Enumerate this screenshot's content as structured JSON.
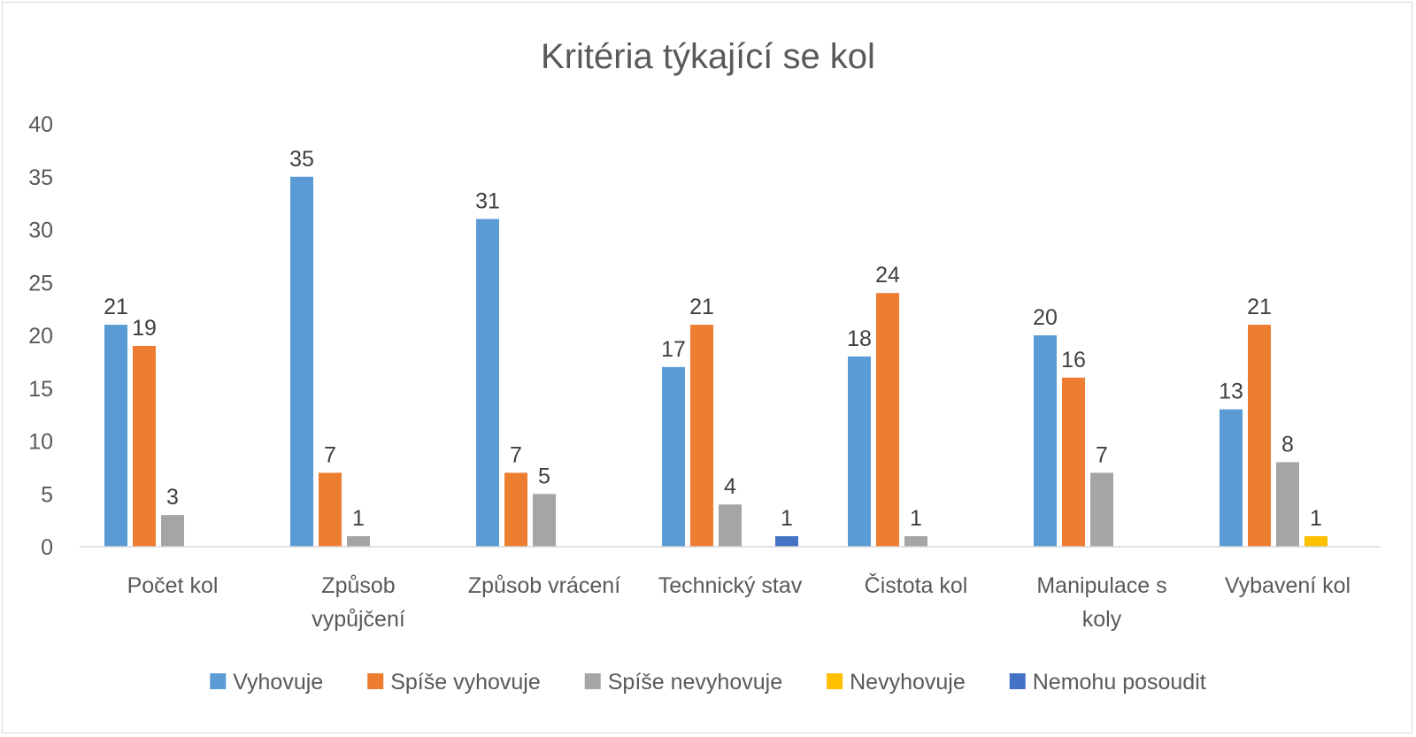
{
  "chart_data": {
    "type": "bar",
    "title": "Kritéria týkající se kol",
    "xlabel": "",
    "ylabel": "",
    "ylim": [
      0,
      40
    ],
    "yticks": [
      0,
      5,
      10,
      15,
      20,
      25,
      30,
      35,
      40
    ],
    "grid": false,
    "legend_position": "bottom",
    "categories": [
      [
        "Počet kol"
      ],
      [
        "Způsob",
        "vypůjčení"
      ],
      [
        "Způsob vrácení"
      ],
      [
        "Technický stav"
      ],
      [
        "Čistota kol"
      ],
      [
        "Manipulace s",
        "koly"
      ],
      [
        "Vybavení kol"
      ]
    ],
    "series": [
      {
        "name": "Vyhovuje",
        "color": "#5b9bd5",
        "values": [
          21,
          35,
          31,
          17,
          18,
          20,
          13
        ]
      },
      {
        "name": "Spíše vyhovuje",
        "color": "#ed7d31",
        "values": [
          19,
          7,
          7,
          21,
          24,
          16,
          21
        ]
      },
      {
        "name": "Spíše nevyhovuje",
        "color": "#a5a5a5",
        "values": [
          3,
          1,
          5,
          4,
          1,
          7,
          8
        ]
      },
      {
        "name": "Nevyhovuje",
        "color": "#ffc000",
        "values": [
          null,
          null,
          null,
          null,
          null,
          null,
          1
        ]
      },
      {
        "name": "Nemohu posoudit",
        "color": "#4472c4",
        "values": [
          null,
          null,
          null,
          1,
          null,
          null,
          null
        ]
      }
    ]
  }
}
